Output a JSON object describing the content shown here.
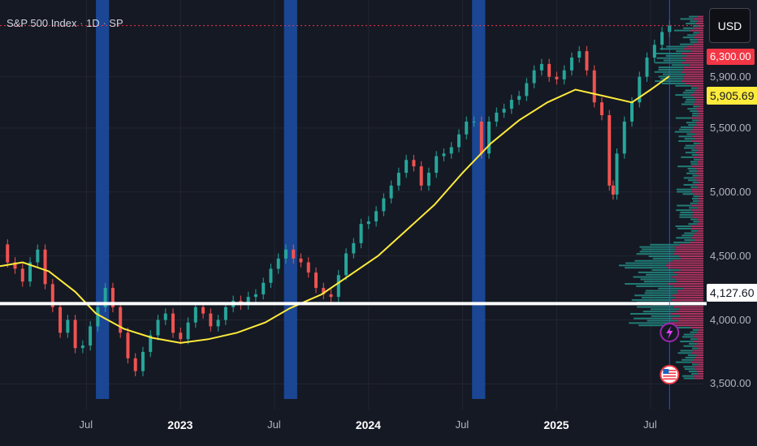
{
  "header": {
    "symbol": "S&P 500 Index",
    "interval": "1D",
    "exchange": "SP",
    "currency": "USD"
  },
  "price_labels": {
    "current": "6,300.00",
    "sma": "5,905.69",
    "horizontal": "4,127.60"
  },
  "events": {
    "earnings_icon": "lightning-icon",
    "dividend_icon": "us-flag-icon"
  },
  "chart_data": {
    "type": "line",
    "title": "S&P 500 Index · 1D · SP",
    "y_axis_side": "right",
    "y_ticks": [
      "3,500.00",
      "4,000.00",
      "4,500.00",
      "5,000.00",
      "5,500.00",
      "5,900.00"
    ],
    "x_ticks": [
      {
        "label": "Jul",
        "t": 2022.5,
        "bold": false
      },
      {
        "label": "2023",
        "t": 2023.0,
        "bold": true
      },
      {
        "label": "Jul",
        "t": 2023.5,
        "bold": false
      },
      {
        "label": "2024",
        "t": 2024.0,
        "bold": true
      },
      {
        "label": "Jul",
        "t": 2024.5,
        "bold": false
      },
      {
        "label": "2025",
        "t": 2025.0,
        "bold": true
      },
      {
        "label": "Jul",
        "t": 2025.5,
        "bold": false
      }
    ],
    "xlim": [
      2022.04,
      2025.78
    ],
    "ylim": [
      3300,
      6500
    ],
    "series": [
      {
        "type": "candles",
        "points": [
          [
            2022.04,
            4590
          ],
          [
            2022.08,
            4450
          ],
          [
            2022.12,
            4400
          ],
          [
            2022.16,
            4300
          ],
          [
            2022.2,
            4450
          ],
          [
            2022.24,
            4550
          ],
          [
            2022.28,
            4280
          ],
          [
            2022.32,
            4100
          ],
          [
            2022.36,
            3900
          ],
          [
            2022.4,
            4000
          ],
          [
            2022.44,
            3780
          ],
          [
            2022.48,
            3800
          ],
          [
            2022.52,
            3950
          ],
          [
            2022.56,
            4100
          ],
          [
            2022.6,
            4250
          ],
          [
            2022.64,
            4100
          ],
          [
            2022.68,
            3900
          ],
          [
            2022.72,
            3700
          ],
          [
            2022.76,
            3600
          ],
          [
            2022.8,
            3750
          ],
          [
            2022.84,
            3880
          ],
          [
            2022.88,
            4000
          ],
          [
            2022.92,
            4050
          ],
          [
            2022.96,
            3900
          ],
          [
            2023.0,
            3850
          ],
          [
            2023.04,
            3980
          ],
          [
            2023.08,
            4100
          ],
          [
            2023.12,
            4050
          ],
          [
            2023.16,
            3950
          ],
          [
            2023.2,
            4000
          ],
          [
            2023.24,
            4100
          ],
          [
            2023.28,
            4150
          ],
          [
            2023.32,
            4120
          ],
          [
            2023.36,
            4180
          ],
          [
            2023.4,
            4200
          ],
          [
            2023.44,
            4290
          ],
          [
            2023.48,
            4400
          ],
          [
            2023.52,
            4480
          ],
          [
            2023.56,
            4550
          ],
          [
            2023.6,
            4480
          ],
          [
            2023.64,
            4450
          ],
          [
            2023.68,
            4370
          ],
          [
            2023.72,
            4250
          ],
          [
            2023.76,
            4200
          ],
          [
            2023.8,
            4180
          ],
          [
            2023.84,
            4350
          ],
          [
            2023.88,
            4520
          ],
          [
            2023.92,
            4600
          ],
          [
            2023.96,
            4750
          ],
          [
            2024.0,
            4770
          ],
          [
            2024.04,
            4850
          ],
          [
            2024.08,
            4950
          ],
          [
            2024.12,
            5050
          ],
          [
            2024.16,
            5150
          ],
          [
            2024.2,
            5250
          ],
          [
            2024.24,
            5200
          ],
          [
            2024.28,
            5050
          ],
          [
            2024.32,
            5150
          ],
          [
            2024.36,
            5280
          ],
          [
            2024.4,
            5300
          ],
          [
            2024.44,
            5350
          ],
          [
            2024.48,
            5450
          ],
          [
            2024.52,
            5550
          ],
          [
            2024.56,
            5550
          ],
          [
            2024.6,
            5300
          ],
          [
            2024.64,
            5550
          ],
          [
            2024.68,
            5620
          ],
          [
            2024.72,
            5650
          ],
          [
            2024.76,
            5720
          ],
          [
            2024.8,
            5750
          ],
          [
            2024.84,
            5850
          ],
          [
            2024.88,
            5950
          ],
          [
            2024.92,
            6000
          ],
          [
            2024.96,
            5900
          ],
          [
            2025.0,
            5880
          ],
          [
            2025.04,
            5950
          ],
          [
            2025.08,
            6050
          ],
          [
            2025.12,
            6100
          ],
          [
            2025.16,
            5950
          ],
          [
            2025.2,
            5700
          ],
          [
            2025.24,
            5600
          ],
          [
            2025.28,
            5050
          ],
          [
            2025.3,
            4980
          ],
          [
            2025.32,
            5300
          ],
          [
            2025.36,
            5550
          ],
          [
            2025.4,
            5700
          ],
          [
            2025.44,
            5900
          ],
          [
            2025.48,
            6050
          ],
          [
            2025.52,
            6150
          ],
          [
            2025.56,
            6250
          ],
          [
            2025.6,
            6300
          ]
        ]
      },
      {
        "type": "line",
        "color": "#ffeb3b",
        "points": [
          [
            2022.04,
            4420
          ],
          [
            2022.16,
            4450
          ],
          [
            2022.3,
            4380
          ],
          [
            2022.44,
            4220
          ],
          [
            2022.55,
            4050
          ],
          [
            2022.7,
            3930
          ],
          [
            2022.85,
            3860
          ],
          [
            2023.0,
            3820
          ],
          [
            2023.15,
            3850
          ],
          [
            2023.3,
            3900
          ],
          [
            2023.45,
            3980
          ],
          [
            2023.58,
            4090
          ],
          [
            2023.75,
            4200
          ],
          [
            2023.9,
            4350
          ],
          [
            2024.05,
            4500
          ],
          [
            2024.2,
            4700
          ],
          [
            2024.35,
            4900
          ],
          [
            2024.5,
            5150
          ],
          [
            2024.65,
            5380
          ],
          [
            2024.8,
            5560
          ],
          [
            2024.95,
            5700
          ],
          [
            2025.1,
            5800
          ],
          [
            2025.25,
            5750
          ],
          [
            2025.4,
            5700
          ],
          [
            2025.5,
            5800
          ],
          [
            2025.6,
            5905.69
          ]
        ]
      }
    ],
    "horizontal_lines": [
      {
        "value": 4127.6,
        "color": "#ffffff"
      },
      {
        "value": 6300,
        "color": "#f23645",
        "style": "dotted"
      }
    ],
    "shaded_periods": [
      [
        2022.55,
        2022.62
      ],
      [
        2023.55,
        2023.62
      ],
      [
        2024.55,
        2024.62
      ]
    ],
    "volume_profile": "right"
  }
}
